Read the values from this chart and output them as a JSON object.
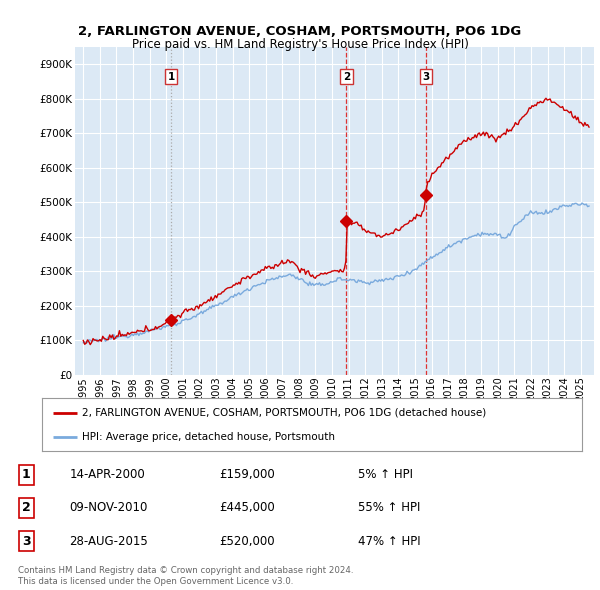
{
  "title_line1": "2, FARLINGTON AVENUE, COSHAM, PORTSMOUTH, PO6 1DG",
  "title_line2": "Price paid vs. HM Land Registry's House Price Index (HPI)",
  "background_color": "#ffffff",
  "plot_bg_color": "#dce9f5",
  "red_color": "#cc0000",
  "blue_color": "#7aaadd",
  "grid_color": "#ffffff",
  "vline1_color": "#aaaaaa",
  "vline1_style": "dotted",
  "vline23_color": "#dd3333",
  "vline23_style": "dashed",
  "sale_points": [
    {
      "date_num": 2000.29,
      "price": 159000,
      "label": "1"
    },
    {
      "date_num": 2010.86,
      "price": 445000,
      "label": "2"
    },
    {
      "date_num": 2015.66,
      "price": 520000,
      "label": "3"
    }
  ],
  "legend_entries": [
    "2, FARLINGTON AVENUE, COSHAM, PORTSMOUTH, PO6 1DG (detached house)",
    "HPI: Average price, detached house, Portsmouth"
  ],
  "table_rows": [
    {
      "num": "1",
      "date": "14-APR-2000",
      "price": "£159,000",
      "pct": "5% ↑ HPI"
    },
    {
      "num": "2",
      "date": "09-NOV-2010",
      "price": "£445,000",
      "pct": "55% ↑ HPI"
    },
    {
      "num": "3",
      "date": "28-AUG-2015",
      "price": "£520,000",
      "pct": "47% ↑ HPI"
    }
  ],
  "footnote1": "Contains HM Land Registry data © Crown copyright and database right 2024.",
  "footnote2": "This data is licensed under the Open Government Licence v3.0.",
  "xmin": 1994.5,
  "xmax": 2025.8,
  "ymin": 0,
  "ymax": 950000,
  "yticks": [
    0,
    100000,
    200000,
    300000,
    400000,
    500000,
    600000,
    700000,
    800000,
    900000
  ],
  "ytick_labels": [
    "£0",
    "£100K",
    "£200K",
    "£300K",
    "£400K",
    "£500K",
    "£600K",
    "£700K",
    "£800K",
    "£900K"
  ],
  "xticks": [
    1995,
    1996,
    1997,
    1998,
    1999,
    2000,
    2001,
    2002,
    2003,
    2004,
    2005,
    2006,
    2007,
    2008,
    2009,
    2010,
    2011,
    2012,
    2013,
    2014,
    2015,
    2016,
    2017,
    2018,
    2019,
    2020,
    2021,
    2022,
    2023,
    2024,
    2025
  ]
}
